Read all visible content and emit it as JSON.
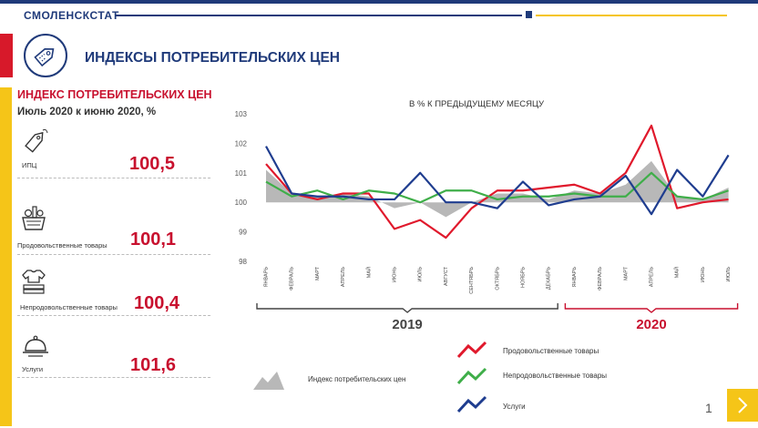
{
  "header": {
    "brand": "СМОЛЕНСКСТАТ",
    "title": "ИНДЕКСЫ ПОТРЕБИТЕЛЬСКИХ ЦЕН"
  },
  "left_panel": {
    "title": "ИНДЕКС ПОТРЕБИТЕЛЬСКИХ ЦЕН",
    "subtitle": "Июль 2020 к июню 2020, %",
    "indicators": [
      {
        "label": "ИПЦ",
        "value": "100,5",
        "icon": "price-tag-icon"
      },
      {
        "label": "Продовольственные товары",
        "value": "100,1",
        "icon": "grocery-basket-icon"
      },
      {
        "label": "Непродовольственные товары",
        "value": "100,4",
        "icon": "clothes-icon"
      },
      {
        "label": "Услуги",
        "value": "101,6",
        "icon": "service-cloche-icon"
      }
    ]
  },
  "chart_data": {
    "type": "line",
    "title": "В % К ПРЕДЫДУЩЕМУ МЕСЯЦУ",
    "ylim": [
      98,
      103
    ],
    "yticks": [
      "103",
      "102",
      "101",
      "100",
      "99",
      "98"
    ],
    "categories": [
      "ЯНВАРЬ",
      "ФЕВРАЛЬ",
      "МАРТ",
      "АПРЕЛЬ",
      "МАЙ",
      "ИЮНЬ",
      "ИЮЛЬ",
      "АВГУСТ",
      "СЕНТЯБРЬ",
      "ОКТЯБРЬ",
      "НОЯБРЬ",
      "ДЕКАБРЬ",
      "ЯНВАРЬ",
      "ФЕВРАЛЬ",
      "МАРТ",
      "АПРЕЛЬ",
      "МАЙ",
      "ИЮНЬ",
      "ИЮЛЬ"
    ],
    "year_groups": [
      {
        "label": "2019",
        "start": 0,
        "end": 11,
        "color": "#444444"
      },
      {
        "label": "2020",
        "start": 12,
        "end": 18,
        "color": "#c8102e"
      }
    ],
    "series": [
      {
        "name": "Индекс потребительских цен",
        "kind": "area",
        "color": "#b8b8b8",
        "values": [
          101.1,
          100.3,
          100.2,
          100.3,
          100.2,
          99.8,
          100.0,
          99.5,
          100.0,
          100.3,
          100.3,
          100.1,
          100.4,
          100.3,
          100.6,
          101.4,
          100.2,
          100.1,
          100.5
        ]
      },
      {
        "name": "Продовольственные товары",
        "kind": "line",
        "color": "#e0192c",
        "values": [
          101.3,
          100.3,
          100.1,
          100.3,
          100.3,
          99.1,
          99.4,
          98.8,
          99.8,
          100.4,
          100.4,
          100.5,
          100.6,
          100.3,
          101.0,
          102.6,
          99.8,
          100.0,
          100.1
        ]
      },
      {
        "name": "Непродовольственные товары",
        "kind": "line",
        "color": "#3fae49",
        "values": [
          100.7,
          100.2,
          100.4,
          100.1,
          100.4,
          100.3,
          100.0,
          100.4,
          100.4,
          100.1,
          100.2,
          100.2,
          100.3,
          100.2,
          100.2,
          101.0,
          100.2,
          100.1,
          100.4
        ]
      },
      {
        "name": "Услуги",
        "kind": "line",
        "color": "#1f3d8f",
        "values": [
          101.9,
          100.3,
          100.2,
          100.2,
          100.1,
          100.1,
          101.0,
          100.0,
          100.0,
          99.8,
          100.7,
          99.9,
          100.1,
          100.2,
          100.9,
          99.6,
          101.1,
          100.2,
          101.6
        ]
      }
    ]
  },
  "legend": {
    "cpi_label": "Индекс потребительских цен"
  },
  "footer": {
    "page_number": "1"
  }
}
